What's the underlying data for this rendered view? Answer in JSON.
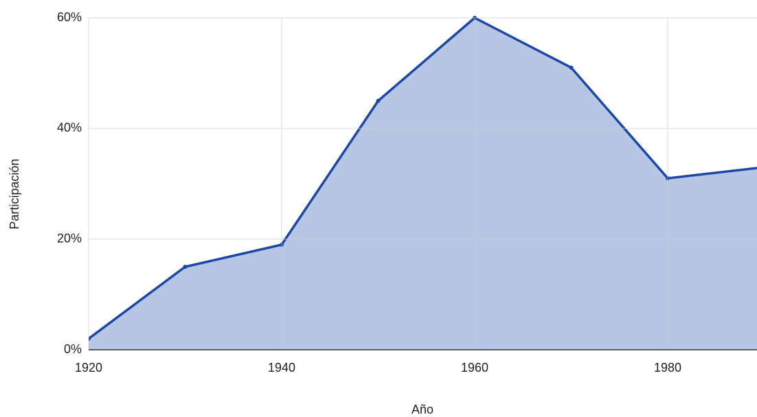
{
  "chart_data": {
    "type": "area",
    "x_label": "Año",
    "y_label": "Participación",
    "x": [
      1920,
      1930,
      1940,
      1950,
      1960,
      1970,
      1980,
      1990
    ],
    "series": [
      {
        "name": "Participación",
        "color": "#1a47a8",
        "fill": "#b8c6e6",
        "values": [
          2,
          15,
          19,
          45,
          60,
          51,
          31,
          33
        ]
      }
    ],
    "xlim": [
      1920,
      1989.25
    ],
    "xticks": [
      1920,
      1940,
      1960,
      1980
    ],
    "ylim": [
      0,
      60
    ],
    "yticks": [
      {
        "value": 0,
        "label": "0%"
      },
      {
        "value": 20,
        "label": "20%"
      },
      {
        "value": 40,
        "label": "40%"
      },
      {
        "value": 60,
        "label": "60%"
      }
    ],
    "grid": true
  }
}
